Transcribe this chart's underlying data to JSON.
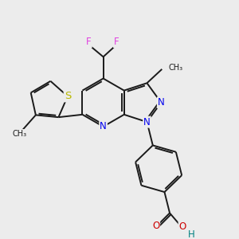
{
  "background_color": "#ececec",
  "bond_color": "#1a1a1a",
  "atom_colors": {
    "F": "#e040e0",
    "N": "#0000ee",
    "S": "#b8b800",
    "O": "#cc0000",
    "H": "#008080",
    "C": "#1a1a1a"
  },
  "figsize": [
    3.0,
    3.0
  ],
  "dpi": 100,
  "lw": 1.4,
  "fs": 8.5
}
